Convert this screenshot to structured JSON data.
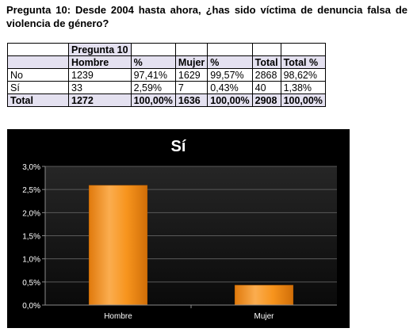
{
  "question": "Pregunta 10: Desde 2004 hasta ahora, ¿has sido víctima de denuncia falsa de violencia de género?",
  "table": {
    "group_header": "Pregunta 10",
    "columns": [
      "Hombre",
      "%",
      "Mujer",
      "%",
      "Total",
      "Total %"
    ],
    "rows": [
      {
        "label": "No",
        "cells": [
          "1239",
          "97,41%",
          "1629",
          "99,57%",
          "2868",
          "98,62%"
        ]
      },
      {
        "label": "Sí",
        "cells": [
          "33",
          "2,59%",
          "7",
          "0,43%",
          "40",
          "1,38%"
        ]
      }
    ],
    "total_row": {
      "label": "Total",
      "cells": [
        "1272",
        "100,00%",
        "1636",
        "100,00%",
        "2908",
        "100,00%"
      ]
    }
  },
  "chart_data": {
    "type": "bar",
    "title": "Sí",
    "categories": [
      "Hombre",
      "Mujer"
    ],
    "values": [
      2.59,
      0.43
    ],
    "xlabel": "",
    "ylabel": "",
    "ylim": [
      0,
      3.0
    ],
    "yticks": [
      "0,0%",
      "0,5%",
      "1,0%",
      "1,5%",
      "2,0%",
      "2,5%",
      "3,0%"
    ],
    "grid": true,
    "legend": "none",
    "bar_color": "#f7941d",
    "background": "#000000",
    "plot_background": "#141414"
  }
}
